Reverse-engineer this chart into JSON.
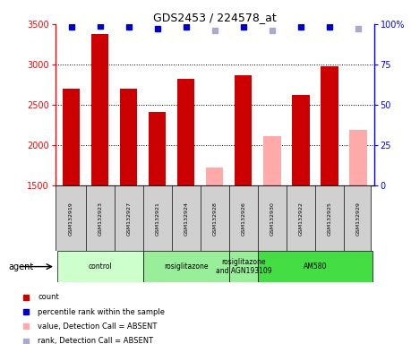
{
  "title": "GDS2453 / 224578_at",
  "samples": [
    "GSM132919",
    "GSM132923",
    "GSM132927",
    "GSM132921",
    "GSM132924",
    "GSM132928",
    "GSM132926",
    "GSM132930",
    "GSM132922",
    "GSM132925",
    "GSM132929"
  ],
  "counts": [
    2700,
    3380,
    2700,
    2415,
    2820,
    1730,
    2870,
    2110,
    2620,
    2980,
    2190
  ],
  "absent": [
    false,
    false,
    false,
    false,
    false,
    true,
    false,
    true,
    false,
    false,
    true
  ],
  "percentile_ranks": [
    98,
    99,
    98,
    97,
    98,
    96,
    98,
    96,
    98,
    98,
    97
  ],
  "absent_ranks": [
    false,
    false,
    false,
    false,
    false,
    true,
    false,
    true,
    false,
    false,
    true
  ],
  "bar_color_present": "#cc0000",
  "bar_color_absent": "#ffaaaa",
  "dot_color_present": "#0000cc",
  "dot_color_absent": "#aaaacc",
  "ylim_left": [
    1500,
    3500
  ],
  "ylim_right": [
    0,
    100
  ],
  "yticks_left": [
    1500,
    2000,
    2500,
    3000,
    3500
  ],
  "yticks_right": [
    0,
    25,
    50,
    75,
    100
  ],
  "grid_lines": [
    2000,
    2500,
    3000
  ],
  "groups": [
    {
      "label": "control",
      "start": 0,
      "end": 3,
      "color": "#ccffcc"
    },
    {
      "label": "rosiglitazone",
      "start": 3,
      "end": 6,
      "color": "#99ee99"
    },
    {
      "label": "rosiglitazone\nand AGN193109",
      "start": 6,
      "end": 7,
      "color": "#99ee99"
    },
    {
      "label": "AM580",
      "start": 7,
      "end": 11,
      "color": "#44dd44"
    }
  ],
  "legend_items": [
    {
      "color": "#cc0000",
      "label": "count",
      "marker": "s"
    },
    {
      "color": "#0000cc",
      "label": "percentile rank within the sample",
      "marker": "s"
    },
    {
      "color": "#ffaaaa",
      "label": "value, Detection Call = ABSENT",
      "marker": "s"
    },
    {
      "color": "#aaaacc",
      "label": "rank, Detection Call = ABSENT",
      "marker": "s"
    }
  ],
  "bg_color": "#f0f0f0",
  "sample_area_color": "#d0d0d0"
}
